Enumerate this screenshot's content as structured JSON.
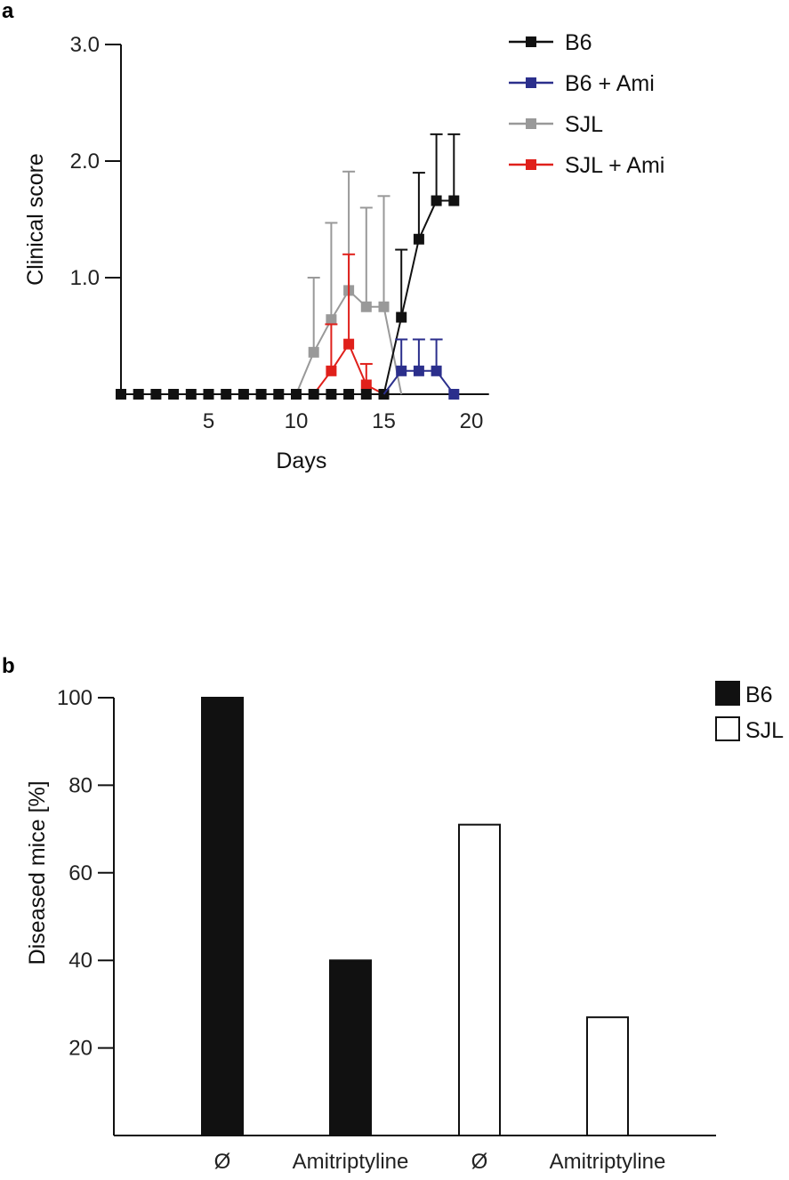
{
  "chart_data": [
    {
      "panel": "a",
      "type": "line",
      "xlabel": "Days",
      "ylabel": "Clinical score",
      "xlim": [
        0,
        21
      ],
      "ylim": [
        0,
        3
      ],
      "x_ticks": [
        5,
        10,
        15,
        20
      ],
      "y_ticks": [
        1,
        2,
        3
      ],
      "x_tick_labels": [
        "5",
        "10",
        "15",
        "20"
      ],
      "y_tick_labels": [
        "1.0",
        "2.0",
        "3.0"
      ],
      "legend_position": "top-right",
      "series": [
        {
          "name": "SJL",
          "color": "#999999",
          "points": [
            {
              "x": 11,
              "y": 0.36,
              "err": 1.0
            },
            {
              "x": 12,
              "y": 0.64,
              "err": 1.47
            },
            {
              "x": 13,
              "y": 0.89,
              "err": 1.91
            },
            {
              "x": 14,
              "y": 0.75,
              "err": 1.6
            },
            {
              "x": 15,
              "y": 0.75,
              "err": 1.7
            }
          ]
        },
        {
          "name": "SJL + Ami",
          "color": "#e0201b",
          "points": [
            {
              "x": 12,
              "y": 0.2,
              "err": 0.6
            },
            {
              "x": 13,
              "y": 0.43,
              "err": 1.2
            },
            {
              "x": 14,
              "y": 0.08,
              "err": 0.26
            }
          ]
        },
        {
          "name": "B6",
          "color": "#111111",
          "points": [
            {
              "x": 0,
              "y": 0
            },
            {
              "x": 1,
              "y": 0
            },
            {
              "x": 2,
              "y": 0
            },
            {
              "x": 3,
              "y": 0
            },
            {
              "x": 4,
              "y": 0
            },
            {
              "x": 5,
              "y": 0
            },
            {
              "x": 6,
              "y": 0
            },
            {
              "x": 7,
              "y": 0
            },
            {
              "x": 8,
              "y": 0
            },
            {
              "x": 9,
              "y": 0
            },
            {
              "x": 10,
              "y": 0
            },
            {
              "x": 11,
              "y": 0
            },
            {
              "x": 12,
              "y": 0
            },
            {
              "x": 13,
              "y": 0
            },
            {
              "x": 14,
              "y": 0
            },
            {
              "x": 15,
              "y": 0
            },
            {
              "x": 16,
              "y": 0.66,
              "err": 1.24
            },
            {
              "x": 17,
              "y": 1.33,
              "err": 1.9
            },
            {
              "x": 18,
              "y": 1.66,
              "err": 2.23
            },
            {
              "x": 19,
              "y": 1.66,
              "err": 2.23
            }
          ]
        },
        {
          "name": "B6 + Ami",
          "color": "#2b2f8c",
          "points": [
            {
              "x": 16,
              "y": 0.2,
              "err": 0.47
            },
            {
              "x": 17,
              "y": 0.2,
              "err": 0.47
            },
            {
              "x": 18,
              "y": 0.2,
              "err": 0.47
            },
            {
              "x": 19,
              "y": 0
            }
          ]
        }
      ],
      "legend_order": [
        "B6",
        "B6 + Ami",
        "SJL",
        "SJL + Ami"
      ]
    },
    {
      "panel": "b",
      "type": "bar",
      "ylabel": "Diseased mice [%]",
      "ylim": [
        0,
        100
      ],
      "y_ticks": [
        20,
        40,
        60,
        80,
        100
      ],
      "categories": [
        "Ø",
        "Amitriptyline",
        "Ø",
        "Amitriptyline"
      ],
      "series": [
        {
          "name": "B6",
          "fill": "#111111",
          "values": [
            100,
            40,
            null,
            null
          ]
        },
        {
          "name": "SJL",
          "fill": "#ffffff",
          "values": [
            null,
            null,
            71,
            27
          ]
        }
      ],
      "legend_position": "top-right"
    }
  ]
}
